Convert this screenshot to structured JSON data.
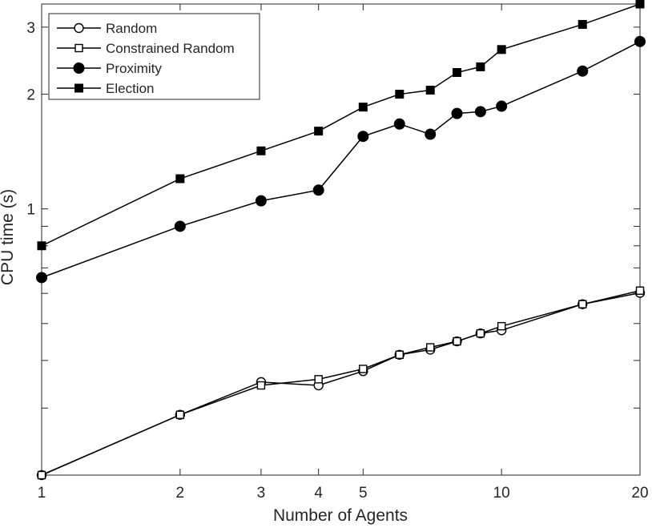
{
  "chart_data": {
    "type": "line",
    "title": "",
    "xlabel": "Number of Agents",
    "ylabel": "CPU time (s)",
    "xscale": "log",
    "yscale": "log",
    "xlim": [
      1,
      20
    ],
    "ylim": [
      0.2,
      3.45
    ],
    "xticks": [
      1,
      2,
      3,
      4,
      5,
      10,
      20
    ],
    "xtick_labels": [
      "1",
      "2",
      "3",
      "4",
      "5",
      "10",
      "20"
    ],
    "yticks": [
      0.2,
      0.3,
      0.4,
      0.5,
      0.6,
      0.7,
      0.8,
      0.9,
      1,
      2,
      3
    ],
    "ytick_labels": [
      "",
      "",
      "",
      "",
      "",
      "",
      "",
      "",
      "1",
      "2",
      "3"
    ],
    "grid": false,
    "legend_position": "top-left",
    "series": [
      {
        "name": "Random",
        "marker": "open-circle",
        "x": [
          1,
          2,
          3,
          4,
          5,
          6,
          7,
          8,
          9,
          10,
          15,
          20
        ],
        "y": [
          0.2,
          0.288,
          0.351,
          0.344,
          0.375,
          0.414,
          0.427,
          0.449,
          0.471,
          0.48,
          0.562,
          0.602
        ]
      },
      {
        "name": "Constrained Random",
        "marker": "open-square",
        "x": [
          1,
          2,
          3,
          4,
          5,
          6,
          7,
          8,
          9,
          10,
          15,
          20
        ],
        "y": [
          0.2,
          0.288,
          0.344,
          0.357,
          0.38,
          0.414,
          0.433,
          0.449,
          0.471,
          0.492,
          0.562,
          0.61
        ]
      },
      {
        "name": "Proximity",
        "marker": "filled-circle",
        "x": [
          1,
          2,
          3,
          4,
          5,
          6,
          7,
          8,
          9,
          10,
          15,
          20
        ],
        "y": [
          0.66,
          0.9,
          1.05,
          1.12,
          1.55,
          1.67,
          1.57,
          1.78,
          1.8,
          1.86,
          2.3,
          2.75
        ]
      },
      {
        "name": "Election",
        "marker": "filled-square",
        "x": [
          1,
          2,
          3,
          4,
          5,
          6,
          7,
          8,
          9,
          10,
          15,
          20
        ],
        "y": [
          0.8,
          1.2,
          1.42,
          1.6,
          1.85,
          2.0,
          2.05,
          2.28,
          2.36,
          2.62,
          3.05,
          3.45
        ]
      }
    ]
  }
}
